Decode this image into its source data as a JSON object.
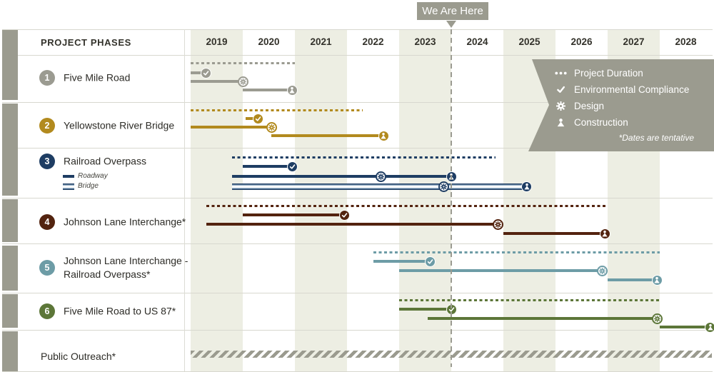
{
  "header": {
    "phases_label": "PROJECT PHASES",
    "years": [
      "2019",
      "2020",
      "2021",
      "2022",
      "2023",
      "2024",
      "2025",
      "2026",
      "2027",
      "2028"
    ]
  },
  "we_are_here": {
    "label": "We Are Here",
    "year": 2024.0
  },
  "legend": {
    "items": [
      {
        "icon": "dots-icon",
        "label": "Project Duration"
      },
      {
        "icon": "check-icon",
        "label": "Environmental Compliance"
      },
      {
        "icon": "gear-icon",
        "label": "Design"
      },
      {
        "icon": "person-icon",
        "label": "Construction"
      }
    ],
    "note": "*Dates are tentative"
  },
  "colors": {
    "gray": "#9b9b91",
    "gold": "#b28a1e",
    "navy": "#1e3d63",
    "bridge_light": "#94aec6",
    "maroon": "#53230f",
    "teal": "#6d9ca6",
    "olive": "#5c7638",
    "banner": "#9b9b8f",
    "shade": "#edeee3",
    "hatch": "#9b9b8f"
  },
  "chart_data": {
    "type": "gantt",
    "x_axis": {
      "start_year": 2019,
      "end_year": 2029,
      "shaded_years": [
        "2019",
        "2021",
        "2023",
        "2025",
        "2027"
      ]
    },
    "rows": [
      {
        "num": "1",
        "label_lines": [
          "Five Mile Road"
        ],
        "color": "#9b9b91",
        "bars": [
          {
            "style": "dotted",
            "start": 2019.0,
            "end": 2021.0
          },
          {
            "style": "solid",
            "start": 2019.0,
            "end": 2019.3,
            "icons": [
              {
                "type": "check",
                "year": 2019.3
              }
            ]
          },
          {
            "style": "solid",
            "start": 2019.0,
            "end": 2020.0,
            "icons": [
              {
                "type": "gear",
                "year": 2020.0
              }
            ]
          },
          {
            "style": "solid",
            "start": 2020.0,
            "end": 2020.95,
            "icons": [
              {
                "type": "person",
                "year": 2020.95
              }
            ]
          }
        ]
      },
      {
        "num": "2",
        "label_lines": [
          "Yellowstone River Bridge"
        ],
        "color": "#b28a1e",
        "bars": [
          {
            "style": "dotted",
            "start": 2019.0,
            "end": 2022.3
          },
          {
            "style": "solid",
            "start": 2020.05,
            "end": 2020.3,
            "icons": [
              {
                "type": "check",
                "year": 2020.3
              }
            ]
          },
          {
            "style": "solid",
            "start": 2019.0,
            "end": 2020.55,
            "icons": [
              {
                "type": "gear",
                "year": 2020.55
              }
            ]
          },
          {
            "style": "solid",
            "start": 2020.55,
            "end": 2022.7,
            "icons": [
              {
                "type": "person",
                "year": 2022.7
              }
            ]
          }
        ]
      },
      {
        "num": "3",
        "label_lines": [
          "Railroad Overpass"
        ],
        "color": "#1e3d63",
        "sublegend": [
          {
            "style": "solid",
            "label": "Roadway"
          },
          {
            "style": "striped",
            "label": "Bridge"
          }
        ],
        "bars": [
          {
            "style": "dotted",
            "start": 2019.8,
            "end": 2024.85
          },
          {
            "style": "solid",
            "start": 2020.0,
            "end": 2020.95,
            "icons": [
              {
                "type": "check",
                "year": 2020.95
              }
            ]
          },
          {
            "style": "solid",
            "track": "roadway",
            "start": 2019.8,
            "end": 2024.0,
            "icons": [
              {
                "type": "gear",
                "year": 2022.65
              },
              {
                "type": "person",
                "year": 2024.0
              }
            ]
          },
          {
            "style": "striped",
            "track": "bridge",
            "start": 2019.8,
            "end": 2025.45,
            "icons": [
              {
                "type": "gear",
                "year": 2023.85
              },
              {
                "type": "person",
                "year": 2025.45
              }
            ]
          }
        ]
      },
      {
        "num": "4",
        "label_lines": [
          "Johnson Lane Interchange*"
        ],
        "color": "#53230f",
        "bars": [
          {
            "style": "dotted",
            "start": 2019.3,
            "end": 2027.0
          },
          {
            "style": "solid",
            "start": 2020.0,
            "end": 2021.95,
            "icons": [
              {
                "type": "check",
                "year": 2021.95
              }
            ]
          },
          {
            "style": "solid",
            "start": 2019.3,
            "end": 2024.9,
            "icons": [
              {
                "type": "gear",
                "year": 2024.9
              }
            ]
          },
          {
            "style": "solid",
            "start": 2025.0,
            "end": 2026.95,
            "icons": [
              {
                "type": "person",
                "year": 2026.95
              }
            ]
          }
        ]
      },
      {
        "num": "5",
        "label_lines": [
          "Johnson Lane Interchange -",
          "Railroad Overpass*"
        ],
        "color": "#6d9ca6",
        "bars": [
          {
            "style": "dotted",
            "start": 2022.5,
            "end": 2028.0
          },
          {
            "style": "solid",
            "start": 2022.5,
            "end": 2023.6,
            "icons": [
              {
                "type": "check",
                "year": 2023.6
              }
            ]
          },
          {
            "style": "solid",
            "start": 2023.0,
            "end": 2026.9,
            "icons": [
              {
                "type": "gear",
                "year": 2026.9
              }
            ]
          },
          {
            "style": "solid",
            "start": 2027.0,
            "end": 2027.95,
            "icons": [
              {
                "type": "person",
                "year": 2027.95
              }
            ]
          }
        ]
      },
      {
        "num": "6",
        "label_lines": [
          "Five Mile Road to US 87*"
        ],
        "color": "#5c7638",
        "bars": [
          {
            "style": "dotted",
            "start": 2023.0,
            "end": 2028.0
          },
          {
            "style": "solid",
            "start": 2023.0,
            "end": 2024.0,
            "icons": [
              {
                "type": "check",
                "year": 2024.0
              }
            ]
          },
          {
            "style": "solid",
            "start": 2023.55,
            "end": 2027.95,
            "icons": [
              {
                "type": "gear",
                "year": 2027.95
              }
            ]
          },
          {
            "style": "solid",
            "start": 2028.0,
            "end": 2028.97,
            "icons": [
              {
                "type": "person",
                "year": 2028.97
              }
            ]
          }
        ]
      }
    ],
    "outreach": {
      "label": "Public Outreach*",
      "style": "hatched",
      "start": 2019.0,
      "end": 2029.0
    }
  }
}
